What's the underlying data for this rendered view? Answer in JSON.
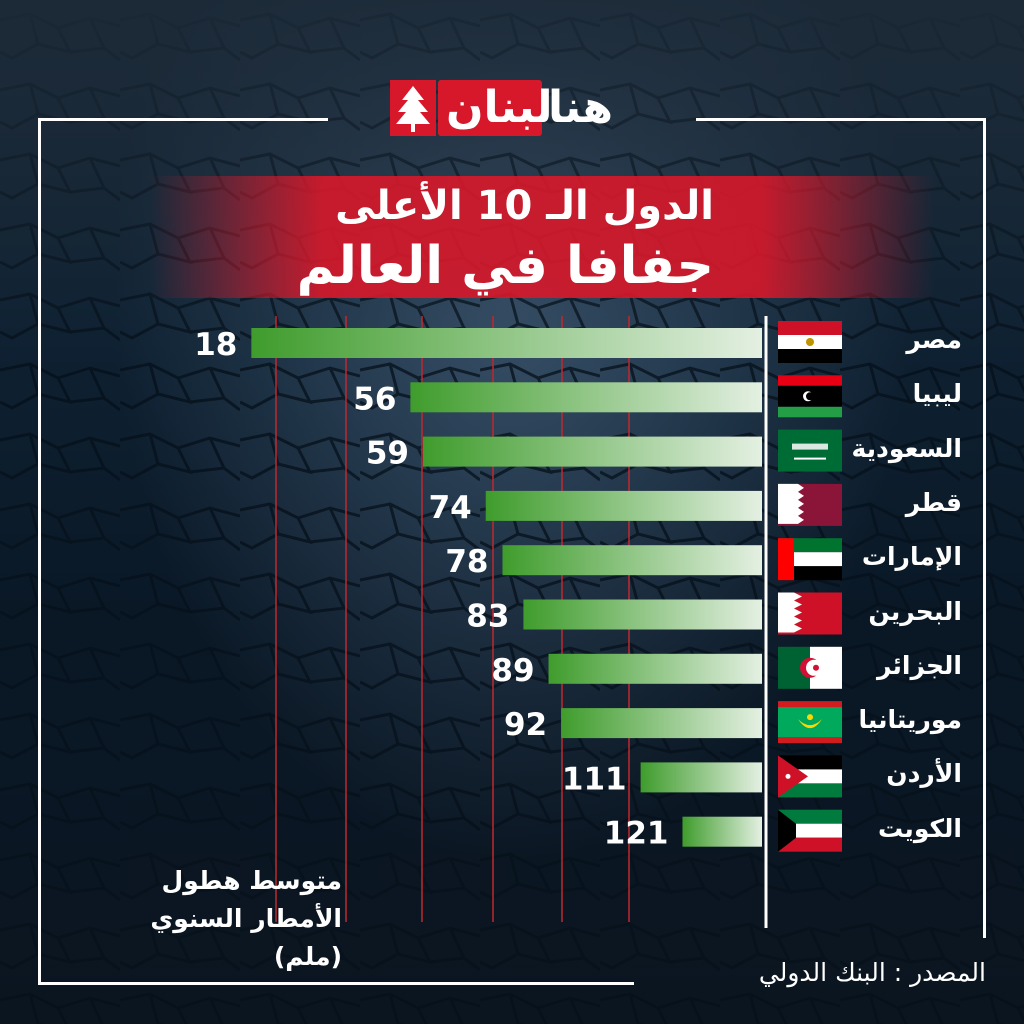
{
  "logo": {
    "word1": "هنا",
    "word2": "لبنان"
  },
  "title": {
    "line1": "الدول الـ 10 الأعلى",
    "line2": "جفافا في العالم"
  },
  "source": "المصدر : البنك الدولي",
  "colors": {
    "accent": "#d7182a",
    "bar_start": "#3f9c2c",
    "bar_end": "#e4f0e2",
    "grid": "#c0282e"
  },
  "chart_data": {
    "type": "bar",
    "orientation": "horizontal",
    "title": "الدول الـ 10 الأعلى جفافا في العالم",
    "ylabel": "متوسط هطول الأمطار السنوي (ملم)",
    "categories": [
      "مصر",
      "ليبيا",
      "السعودية",
      "قطر",
      "الإمارات",
      "البحرين",
      "الجزائر",
      "موريتانيا",
      "الأردن",
      "الكويت"
    ],
    "values": [
      18,
      56,
      59,
      74,
      78,
      83,
      89,
      92,
      111,
      121
    ],
    "flags": [
      "egypt-flag",
      "libya-flag",
      "saudi-flag",
      "qatar-flag",
      "uae-flag",
      "bahrain-flag",
      "algeria-flag",
      "mauritania-flag",
      "jordan-flag",
      "kuwait-flag"
    ],
    "grid": true
  }
}
